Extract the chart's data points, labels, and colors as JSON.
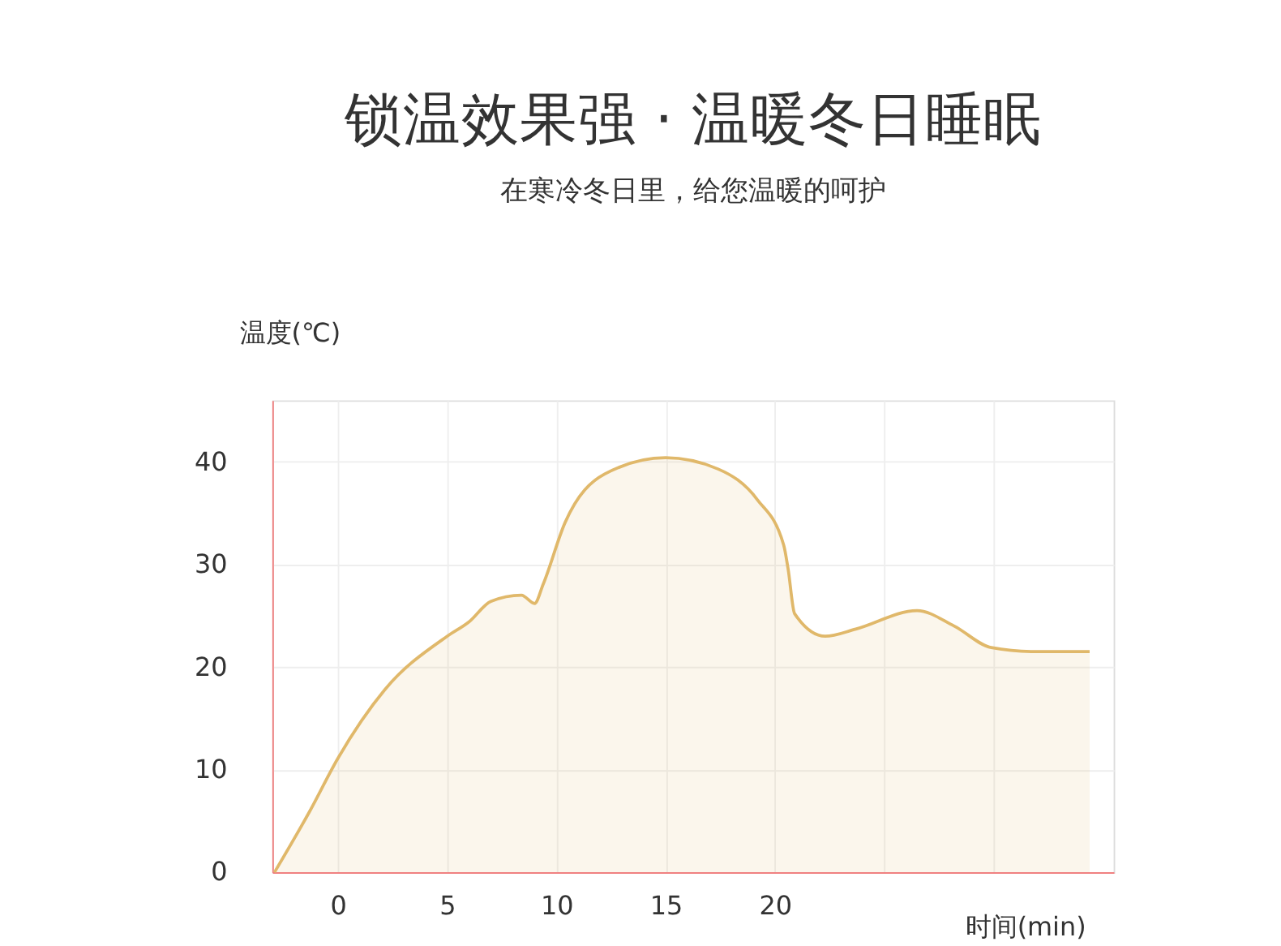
{
  "chart_data": {
    "type": "area",
    "title": "锁温效果强 · 温暖冬日睡眠",
    "subtitle": "在寒冷冬日里，给您温暖的呵护",
    "xlabel": "时间(min)",
    "ylabel": "温度(℃)",
    "x": [
      -2.9,
      -1.3,
      0,
      2.15,
      5,
      6,
      7,
      8.4,
      9,
      9.4,
      10.4,
      12.2,
      15,
      17.4,
      19.2,
      20.4,
      20.6,
      20.9,
      22.3,
      23.7,
      26.5,
      28.2,
      29.9,
      32,
      34.4
    ],
    "series": [
      {
        "color": "#e0b86a",
        "values": [
          0,
          5.9,
          11.1,
          17.8,
          23,
          24.4,
          26.4,
          27,
          26.2,
          28.1,
          34.1,
          38.8,
          40.4,
          39.3,
          36.3,
          31.9,
          29.6,
          25.2,
          23,
          23.7,
          25.5,
          24,
          21.9,
          21.5,
          21.5
        ]
      }
    ],
    "xlim": [
      -3,
      35.5
    ],
    "ylim": [
      0,
      46
    ],
    "xticks": [
      0,
      5,
      10,
      15,
      20,
      {
        "value": 25,
        "label": null
      },
      {
        "value": 30,
        "label": null
      }
    ],
    "yticks": [
      0,
      10,
      20,
      30,
      40
    ],
    "grid": true
  }
}
